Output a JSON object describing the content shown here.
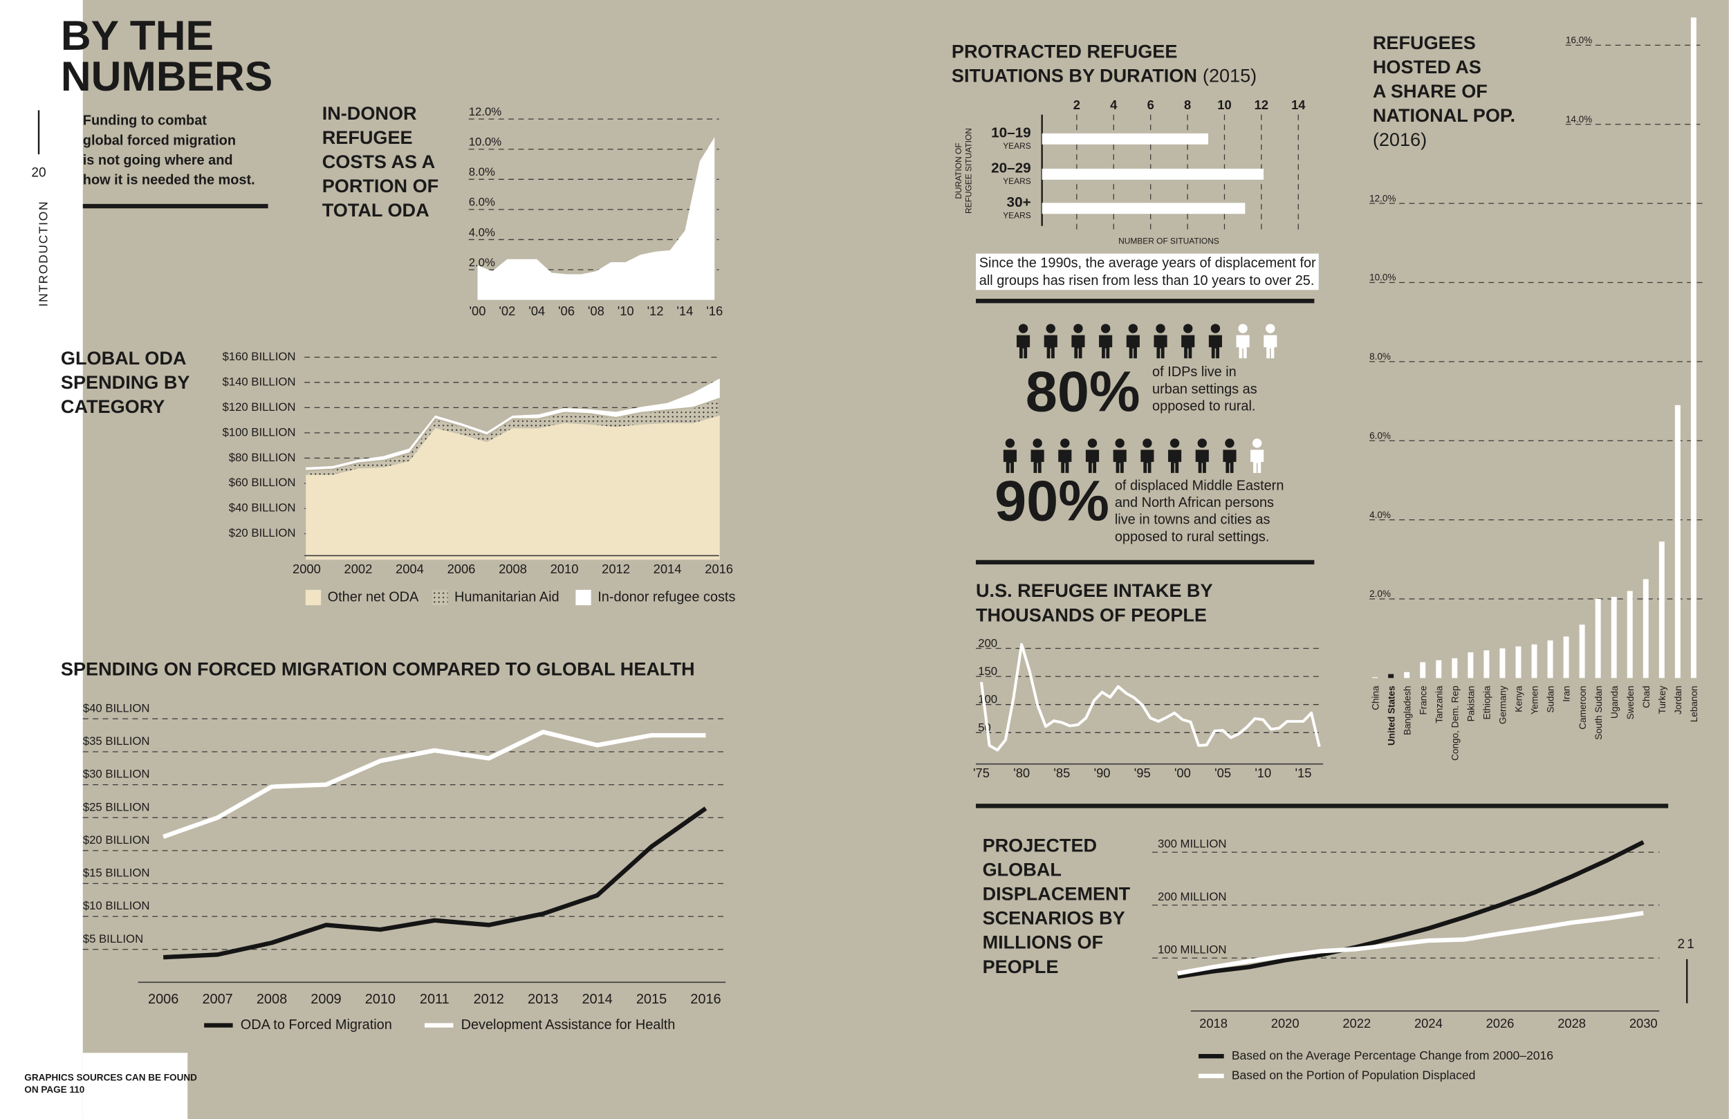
{
  "header": {
    "title": [
      "BY THE",
      "NUMBERS"
    ],
    "intro": [
      "Funding to combat",
      "global forced migration",
      "is not going where and",
      "how it is needed the most."
    ],
    "page_left": "20",
    "section": "INTRODUCTION",
    "page_right": "21",
    "footer": [
      "GRAPHICS SOURCES CAN BE FOUND",
      "ON PAGE 110"
    ]
  },
  "stats": [
    {
      "value": 80,
      "label": "80%",
      "text": [
        "of IDPs live in",
        "urban settings as",
        "opposed to rural."
      ]
    },
    {
      "value": 90,
      "label": "90%",
      "text": [
        "of displaced Middle Eastern",
        "and North African persons",
        "live in towns and cities as",
        "opposed to rural settings."
      ]
    }
  ],
  "chart_data": [
    {
      "type": "area",
      "title": [
        "IN-DONOR",
        "REFUGEE",
        "COSTS AS A",
        "PORTION OF",
        "TOTAL ODA"
      ],
      "x": [
        2000,
        2001,
        2002,
        2003,
        2004,
        2005,
        2006,
        2007,
        2008,
        2009,
        2010,
        2011,
        2012,
        2013,
        2014,
        2015,
        2016
      ],
      "values": [
        2.3,
        1.9,
        2.7,
        2.7,
        2.7,
        1.8,
        1.7,
        1.7,
        1.9,
        2.5,
        2.5,
        3.0,
        3.2,
        3.3,
        4.6,
        9.2,
        10.8
      ],
      "color": "#ffffff",
      "xlim": [
        2000,
        2016
      ],
      "xticks": [
        {
          "value": 2000,
          "label": "'00"
        },
        {
          "value": 2002,
          "label": "'02"
        },
        {
          "value": 2004,
          "label": "'04"
        },
        {
          "value": 2006,
          "label": "'06"
        },
        {
          "value": 2008,
          "label": "'08"
        },
        {
          "value": 2010,
          "label": "'10"
        },
        {
          "value": 2012,
          "label": "'12"
        },
        {
          "value": 2014,
          "label": "'14"
        },
        {
          "value": 2016,
          "label": "'16"
        }
      ],
      "ylim": [
        0,
        12
      ],
      "yticks": [
        {
          "value": 2,
          "label": "2.0%"
        },
        {
          "value": 4,
          "label": "4.0%"
        },
        {
          "value": 6,
          "label": "6.0%"
        },
        {
          "value": 8,
          "label": "8.0%"
        },
        {
          "value": 10,
          "label": "10.0%"
        },
        {
          "value": 12,
          "label": "12.0%"
        }
      ],
      "grid": true
    },
    {
      "type": "stacked_area",
      "title": [
        "GLOBAL ODA",
        "SPENDING BY",
        "CATEGORY"
      ],
      "x": [
        2000,
        2001,
        2002,
        2003,
        2004,
        2005,
        2006,
        2007,
        2008,
        2009,
        2010,
        2011,
        2012,
        2013,
        2014,
        2015,
        2016
      ],
      "series": [
        {
          "name": "Other net ODA",
          "color": "#f0e4c4",
          "values": [
            66,
            66,
            71,
            72,
            77,
            103,
            98,
            92,
            103,
            103,
            107,
            106,
            104,
            106,
            107,
            107,
            113
          ]
        },
        {
          "name": "Humanitarian Aid",
          "color": "#bdb6a2",
          "pattern": "dots",
          "values": [
            4,
            5,
            5,
            6,
            7,
            8,
            7,
            6,
            8,
            8,
            9,
            9,
            8,
            10,
            11,
            13,
            14
          ]
        },
        {
          "name": "In-donor refugee costs",
          "color": "#ffffff",
          "values": [
            2,
            2,
            2,
            3,
            3,
            2,
            2,
            2,
            2,
            3,
            3,
            3,
            4,
            4,
            5,
            11,
            15
          ]
        }
      ],
      "xlim": [
        2000,
        2016
      ],
      "xticks": [
        2000,
        2002,
        2004,
        2006,
        2008,
        2010,
        2012,
        2014,
        2016
      ],
      "ylim": [
        0,
        160
      ],
      "yticks": [
        {
          "value": 20,
          "label": "$20 BILLION"
        },
        {
          "value": 40,
          "label": "$40 BILLION"
        },
        {
          "value": 60,
          "label": "$60 BILLION"
        },
        {
          "value": 80,
          "label": "$80 BILLION"
        },
        {
          "value": 100,
          "label": "$100 BILLION"
        },
        {
          "value": 120,
          "label": "$120 BILLION"
        },
        {
          "value": 140,
          "label": "$140 BILLION"
        },
        {
          "value": 160,
          "label": "$160 BILLION"
        }
      ],
      "grid": true
    },
    {
      "type": "line",
      "title": [
        "SPENDING ON FORCED MIGRATION COMPARED TO GLOBAL HEALTH"
      ],
      "categories": [
        "2006",
        "2007",
        "2008",
        "2009",
        "2010",
        "2011",
        "2012",
        "2013",
        "2014",
        "2015",
        "2016"
      ],
      "series": [
        {
          "name": "ODA to Forced Migration",
          "color": "#151515",
          "values": [
            3.8,
            4.2,
            6.0,
            8.7,
            8.0,
            9.4,
            8.7,
            10.4,
            13.2,
            20.6,
            26.4
          ]
        },
        {
          "name": "Development Assistance for Health",
          "color": "#ffffff",
          "values": [
            22.1,
            25.0,
            29.7,
            30.0,
            33.6,
            35.2,
            34.0,
            38.0,
            36.0,
            37.5,
            37.5
          ]
        }
      ],
      "ylim": [
        0,
        40
      ],
      "yticks": [
        {
          "value": 5,
          "label": "$5 BILLION"
        },
        {
          "value": 10,
          "label": "$10 BILLION"
        },
        {
          "value": 15,
          "label": "$15 BILLION"
        },
        {
          "value": 20,
          "label": "$20 BILLION"
        },
        {
          "value": 25,
          "label": "$25 BILLION"
        },
        {
          "value": 30,
          "label": "$30 BILLION"
        },
        {
          "value": 35,
          "label": "$35 BILLION"
        },
        {
          "value": 40,
          "label": "$40 BILLION"
        }
      ],
      "grid": true
    },
    {
      "type": "hbar",
      "title": [
        "PROTRACTED REFUGEE",
        "SITUATIONS BY DURATION"
      ],
      "subtitle": "(2015)",
      "categories": [
        "10–19",
        "20–29",
        "30+"
      ],
      "category_unit": "YEARS",
      "values": [
        9,
        12,
        11
      ],
      "color": "#ffffff",
      "xlim": [
        0,
        14
      ],
      "xticks": [
        2,
        4,
        6,
        8,
        10,
        12,
        14
      ],
      "x_label": "NUMBER OF SITUATIONS",
      "y_label": [
        "DURATION OF",
        "REFUGEE SITUATION"
      ],
      "grid": true,
      "note": [
        "Since the 1990s, the average years of displacement for",
        "all groups has risen from less than 10 years to over 25."
      ]
    },
    {
      "type": "line",
      "title": [
        "U.S. REFUGEE INTAKE BY",
        "THOUSANDS OF PEOPLE"
      ],
      "x": [
        1975,
        1976,
        1977,
        1978,
        1979,
        1980,
        1981,
        1982,
        1983,
        1984,
        1985,
        1986,
        1987,
        1988,
        1989,
        1990,
        1991,
        1992,
        1993,
        1994,
        1995,
        1996,
        1997,
        1998,
        1999,
        2000,
        2001,
        2002,
        2003,
        2004,
        2005,
        2006,
        2007,
        2008,
        2009,
        2010,
        2011,
        2012,
        2013,
        2014,
        2015,
        2016,
        2017
      ],
      "series": [
        {
          "name": null,
          "color": "#ffffff",
          "values": [
            140,
            27,
            19,
            37,
            112,
            207,
            159,
            98,
            61,
            71,
            68,
            62,
            64,
            76,
            107,
            122,
            113,
            132,
            120,
            112,
            99,
            76,
            70,
            77,
            85,
            73,
            69,
            27,
            28,
            53,
            54,
            41,
            48,
            60,
            75,
            73,
            56,
            58,
            70,
            70,
            70,
            85,
            25
          ]
        }
      ],
      "xlim": [
        1975,
        2017
      ],
      "xticks": [
        {
          "value": 1975,
          "label": "'75"
        },
        {
          "value": 1980,
          "label": "'80"
        },
        {
          "value": 1985,
          "label": "'85"
        },
        {
          "value": 1990,
          "label": "'90"
        },
        {
          "value": 1995,
          "label": "'95"
        },
        {
          "value": 2000,
          "label": "'00"
        },
        {
          "value": 2005,
          "label": "'05"
        },
        {
          "value": 2010,
          "label": "'10"
        },
        {
          "value": 2015,
          "label": "'15"
        }
      ],
      "ylim": [
        0,
        210
      ],
      "yticks": [
        50,
        100,
        150,
        200
      ],
      "grid": true
    },
    {
      "type": "bar",
      "title": [
        "REFUGEES",
        "HOSTED AS",
        "A SHARE OF",
        "NATIONAL POP."
      ],
      "subtitle": "(2016)",
      "categories": [
        "China",
        "United States",
        "Bangladesh",
        "France",
        "Tanzania",
        "Congo, Dem. Rep",
        "Pakistan",
        "Ethiopia",
        "Germany",
        "Kenya",
        "Yemen",
        "Sudan",
        "Iran",
        "Cameroon",
        "South Sudan",
        "Uganda",
        "Sweden",
        "Chad",
        "Turkey",
        "Jordan",
        "Lebanon"
      ],
      "values": [
        0.02,
        0.1,
        0.15,
        0.4,
        0.45,
        0.5,
        0.65,
        0.7,
        0.75,
        0.8,
        0.85,
        0.95,
        1.05,
        1.35,
        2.0,
        2.05,
        2.2,
        2.5,
        3.45,
        6.9,
        16.7
      ],
      "colors": [
        "#ffffff",
        "#1a1a1a",
        "#ffffff",
        "#ffffff",
        "#ffffff",
        "#ffffff",
        "#ffffff",
        "#ffffff",
        "#ffffff",
        "#ffffff",
        "#ffffff",
        "#ffffff",
        "#ffffff",
        "#ffffff",
        "#ffffff",
        "#ffffff",
        "#ffffff",
        "#ffffff",
        "#ffffff",
        "#ffffff",
        "#ffffff"
      ],
      "ylim": [
        0,
        16
      ],
      "yticks": [
        {
          "value": 2,
          "label": "2.0%"
        },
        {
          "value": 4,
          "label": "4.0%"
        },
        {
          "value": 6,
          "label": "6.0%"
        },
        {
          "value": 8,
          "label": "8.0%"
        },
        {
          "value": 10,
          "label": "10.0%"
        },
        {
          "value": 12,
          "label": "12.0%"
        },
        {
          "value": 14,
          "label": "14.0%"
        },
        {
          "value": 16,
          "label": "16.0%"
        }
      ],
      "grid": true
    },
    {
      "type": "line",
      "title": [
        "PROJECTED",
        "GLOBAL",
        "DISPLACEMENT",
        "SCENARIOS BY",
        "MILLIONS OF",
        "PEOPLE"
      ],
      "x": [
        2017,
        2018,
        2019,
        2020,
        2021,
        2022,
        2023,
        2024,
        2025,
        2026,
        2027,
        2028,
        2029,
        2030
      ],
      "series": [
        {
          "name": "Based on the Average Percentage Change from 2000–2016",
          "color": "#151515",
          "values": [
            65,
            75,
            83,
            96,
            106,
            121,
            138,
            156,
            177,
            200,
            225,
            254,
            285,
            319
          ]
        },
        {
          "name": "Based on the Portion of Population Displaced",
          "color": "#ffffff",
          "values": [
            71,
            83,
            94,
            104,
            113,
            117,
            125,
            133,
            135,
            146,
            156,
            167,
            175,
            185
          ]
        }
      ],
      "xlim": [
        2017,
        2031
      ],
      "xticks": [
        2018,
        2020,
        2022,
        2024,
        2026,
        2028,
        2030
      ],
      "ylim": [
        0,
        300
      ],
      "yticks": [
        {
          "value": 100,
          "label": "100 MILLION"
        },
        {
          "value": 200,
          "label": "200 MILLION"
        },
        {
          "value": 300,
          "label": "300 MILLION"
        }
      ],
      "grid": true
    }
  ]
}
